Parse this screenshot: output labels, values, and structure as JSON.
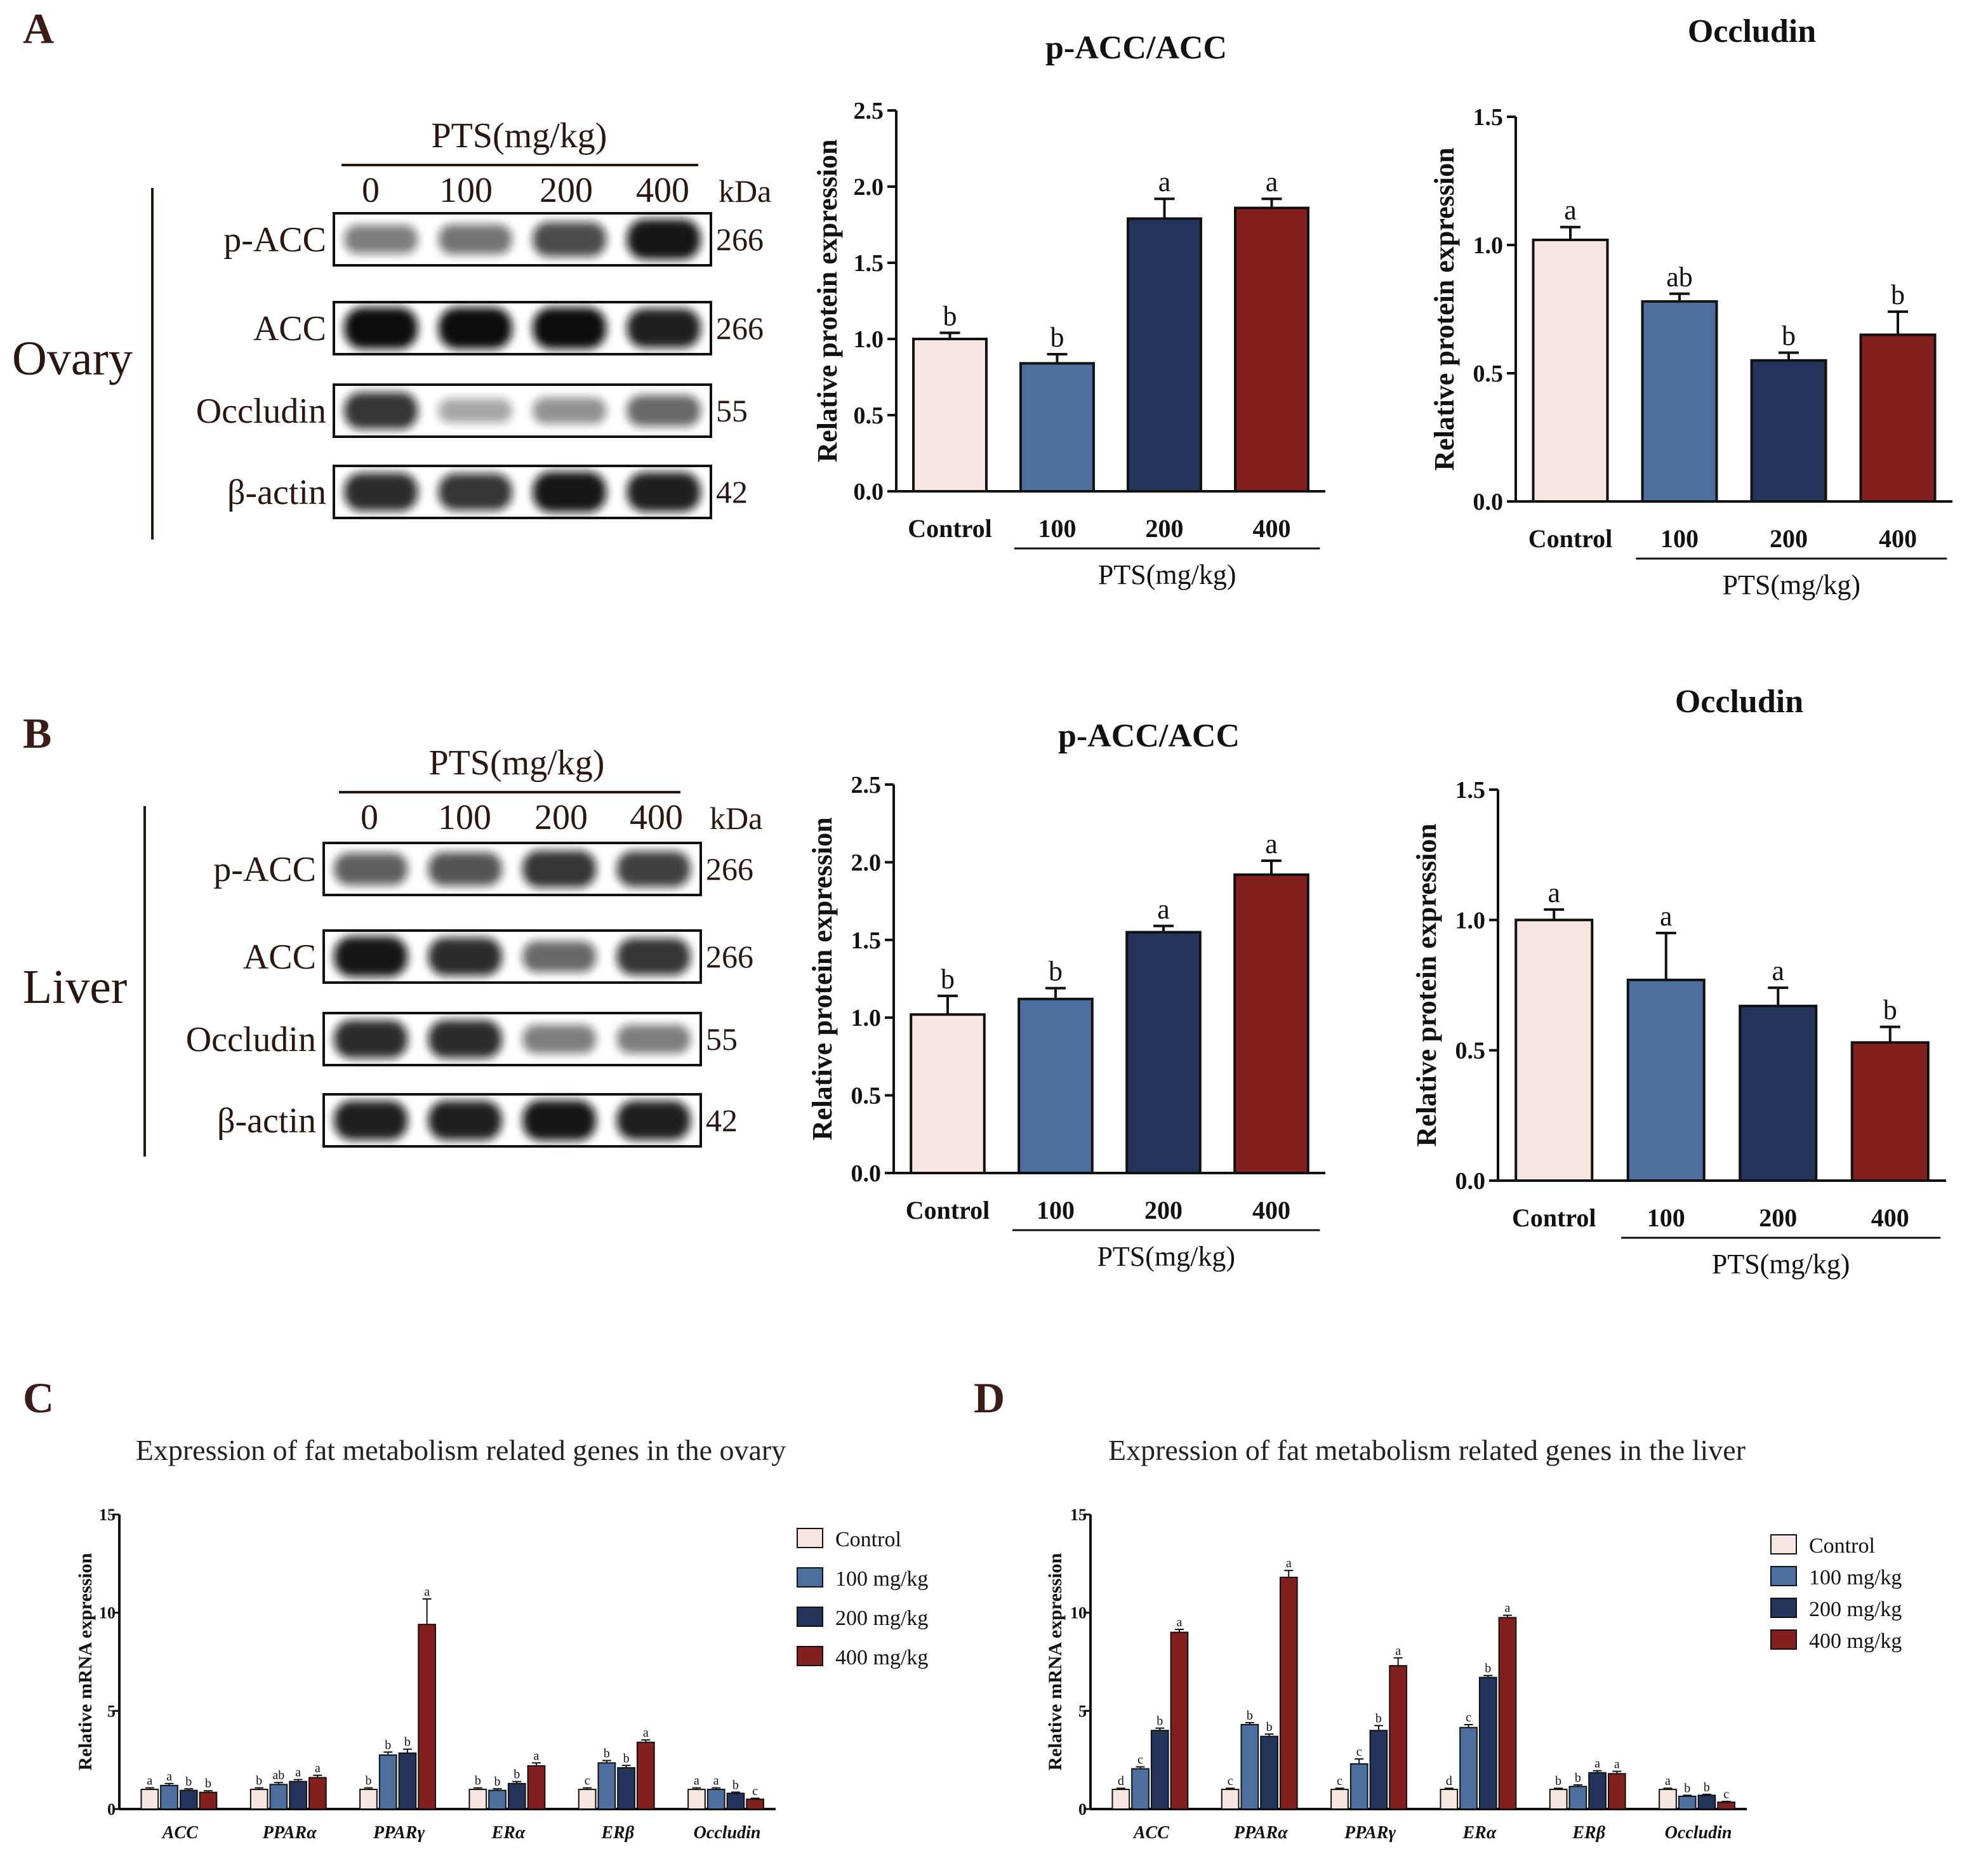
{
  "colors": {
    "control": "#f7e6e1",
    "c100": "#4d6f9e",
    "c200": "#24335a",
    "c400": "#82201f"
  },
  "panels": {
    "A": {
      "letter": "A",
      "tissue": "Ovary",
      "blot": {
        "group": "PTS(mg/kg)",
        "lanes": [
          "0",
          "100",
          "200",
          "400"
        ],
        "kda_label": "kDa",
        "rows": [
          {
            "name": "p-ACC",
            "kda": "266",
            "intensity": [
              0.45,
              0.5,
              0.7,
              0.95
            ]
          },
          {
            "name": "ACC",
            "kda": "266",
            "intensity": [
              1.0,
              1.0,
              1.0,
              0.9
            ]
          },
          {
            "name": "Occludin",
            "kda": "55",
            "intensity": [
              0.8,
              0.25,
              0.35,
              0.55
            ]
          },
          {
            "name": "β-actin",
            "kda": "42",
            "intensity": [
              0.85,
              0.8,
              0.95,
              0.9
            ]
          }
        ]
      }
    },
    "B": {
      "letter": "B",
      "tissue": "Liver",
      "blot": {
        "group": "PTS(mg/kg)",
        "lanes": [
          "0",
          "100",
          "200",
          "400"
        ],
        "kda_label": "kDa",
        "rows": [
          {
            "name": "p-ACC",
            "kda": "266",
            "intensity": [
              0.6,
              0.65,
              0.8,
              0.75
            ]
          },
          {
            "name": "ACC",
            "kda": "266",
            "intensity": [
              0.95,
              0.85,
              0.55,
              0.8
            ]
          },
          {
            "name": "Occludin",
            "kda": "55",
            "intensity": [
              0.85,
              0.85,
              0.45,
              0.45
            ]
          },
          {
            "name": "β-actin",
            "kda": "42",
            "intensity": [
              0.9,
              0.9,
              0.95,
              0.9
            ]
          }
        ]
      }
    },
    "C": {
      "letter": "C"
    },
    "D": {
      "letter": "D"
    }
  },
  "chart_data": [
    {
      "id": "A1",
      "type": "bar",
      "title": "p-ACC/ACC",
      "ylabel": "Relative protein expression",
      "ylim": [
        0,
        2.5
      ],
      "yticks": [
        "0.0",
        "0.5",
        "1.0",
        "1.5",
        "2.0",
        "2.5"
      ],
      "categories": [
        "Control",
        "100",
        "200",
        "400"
      ],
      "group_label": "PTS(mg/kg)",
      "values": [
        1.0,
        0.84,
        1.79,
        1.86
      ],
      "errors": [
        0.04,
        0.06,
        0.13,
        0.06
      ],
      "labels": [
        "b",
        "b",
        "a",
        "a"
      ]
    },
    {
      "id": "A2",
      "type": "bar",
      "title": "Occludin",
      "ylabel": "Relative protein expression",
      "ylim": [
        0,
        1.5
      ],
      "yticks": [
        "0.0",
        "0.5",
        "1.0",
        "1.5"
      ],
      "categories": [
        "Control",
        "100",
        "200",
        "400"
      ],
      "group_label": "PTS(mg/kg)",
      "values": [
        1.02,
        0.78,
        0.55,
        0.65
      ],
      "errors": [
        0.05,
        0.03,
        0.03,
        0.09
      ],
      "labels": [
        "a",
        "ab",
        "b",
        "b"
      ]
    },
    {
      "id": "B1",
      "type": "bar",
      "title": "p-ACC/ACC",
      "ylabel": "Relative protein expression",
      "ylim": [
        0,
        2.5
      ],
      "yticks": [
        "0.0",
        "0.5",
        "1.0",
        "1.5",
        "2.0",
        "2.5"
      ],
      "categories": [
        "Control",
        "100",
        "200",
        "400"
      ],
      "group_label": "PTS(mg/kg)",
      "values": [
        1.02,
        1.12,
        1.55,
        1.92
      ],
      "errors": [
        0.12,
        0.07,
        0.04,
        0.09
      ],
      "labels": [
        "b",
        "b",
        "a",
        "a"
      ]
    },
    {
      "id": "B2",
      "type": "bar",
      "title": "Occludin",
      "ylabel": "Relative protein expression",
      "ylim": [
        0,
        1.5
      ],
      "yticks": [
        "0.0",
        "0.5",
        "1.0",
        "1.5"
      ],
      "categories": [
        "Control",
        "100",
        "200",
        "400"
      ],
      "group_label": "PTS(mg/kg)",
      "values": [
        1.0,
        0.77,
        0.67,
        0.53
      ],
      "errors": [
        0.04,
        0.18,
        0.07,
        0.06
      ],
      "labels": [
        "a",
        "a",
        "a",
        "b"
      ]
    },
    {
      "id": "C",
      "type": "bar",
      "title": "Expression of fat metabolism related genes in the ovary",
      "ylabel": "Relative mRNA expression",
      "ylim": [
        0,
        15
      ],
      "yticks": [
        "0",
        "5",
        "10",
        "15"
      ],
      "categories": [
        "ACC",
        "PPARα",
        "PPARγ",
        "ERα",
        "ERβ",
        "Occludin"
      ],
      "legend": [
        "Control",
        "100 mg/kg",
        "200 mg/kg",
        "400 mg/kg"
      ],
      "series": [
        {
          "values": [
            1.0,
            1.0,
            1.0,
            1.0,
            1.0,
            1.0
          ],
          "errors": [
            0.08,
            0.08,
            0.08,
            0.08,
            0.08,
            0.08
          ],
          "labels": [
            "a",
            "b",
            "b",
            "b",
            "c",
            "a"
          ]
        },
        {
          "values": [
            1.2,
            1.25,
            2.75,
            0.95,
            2.35,
            1.0
          ],
          "errors": [
            0.1,
            0.1,
            0.15,
            0.08,
            0.12,
            0.08
          ],
          "labels": [
            "a",
            "ab",
            "b",
            "b",
            "b",
            "a"
          ]
        },
        {
          "values": [
            0.95,
            1.4,
            2.85,
            1.3,
            2.1,
            0.8
          ],
          "errors": [
            0.08,
            0.1,
            0.2,
            0.1,
            0.12,
            0.06
          ],
          "labels": [
            "b",
            "a",
            "b",
            "b",
            "b",
            "b"
          ]
        },
        {
          "values": [
            0.85,
            1.6,
            9.4,
            2.2,
            3.4,
            0.5
          ],
          "errors": [
            0.08,
            0.12,
            1.3,
            0.15,
            0.12,
            0.05
          ],
          "labels": [
            "b",
            "a",
            "a",
            "a",
            "a",
            "c"
          ]
        }
      ]
    },
    {
      "id": "D",
      "type": "bar",
      "title": "Expression of fat metabolism related genes in the liver",
      "ylabel": "Relative mRNA expression",
      "ylim": [
        0,
        15
      ],
      "yticks": [
        "0",
        "5",
        "10",
        "15"
      ],
      "categories": [
        "ACC",
        "PPARα",
        "PPARγ",
        "ERα",
        "ERβ",
        "Occludin"
      ],
      "legend": [
        "Control",
        "100 mg/kg",
        "200 mg/kg",
        "400 mg/kg"
      ],
      "series": [
        {
          "values": [
            1.0,
            1.0,
            1.0,
            1.0,
            1.0,
            1.0
          ],
          "errors": [
            0.06,
            0.06,
            0.06,
            0.06,
            0.06,
            0.06
          ],
          "labels": [
            "d",
            "c",
            "c",
            "d",
            "b",
            "a"
          ]
        },
        {
          "values": [
            2.05,
            4.3,
            2.3,
            4.15,
            1.15,
            0.65
          ],
          "errors": [
            0.1,
            0.1,
            0.25,
            0.15,
            0.08,
            0.05
          ],
          "labels": [
            "c",
            "b",
            "c",
            "c",
            "b",
            "b"
          ]
        },
        {
          "values": [
            4.0,
            3.7,
            4.0,
            6.7,
            1.85,
            0.7
          ],
          "errors": [
            0.12,
            0.12,
            0.25,
            0.1,
            0.1,
            0.05
          ],
          "labels": [
            "b",
            "b",
            "b",
            "b",
            "a",
            "b"
          ]
        },
        {
          "values": [
            9.0,
            11.8,
            7.3,
            9.75,
            1.8,
            0.35
          ],
          "errors": [
            0.15,
            0.35,
            0.4,
            0.12,
            0.12,
            0.04
          ],
          "labels": [
            "a",
            "a",
            "a",
            "a",
            "a",
            "c"
          ]
        }
      ]
    }
  ]
}
